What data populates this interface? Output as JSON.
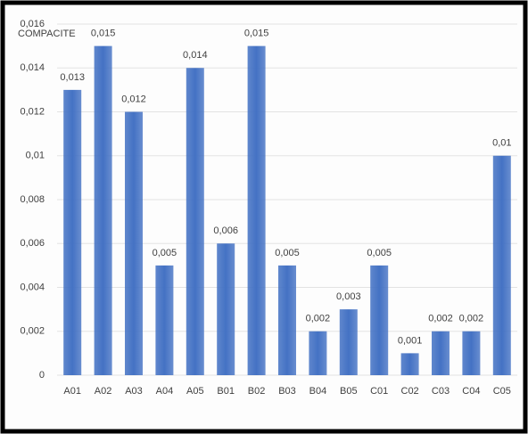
{
  "chart_data": {
    "type": "bar",
    "title": "COMPACITE",
    "categories": [
      "A01",
      "A02",
      "A03",
      "A04",
      "A05",
      "B01",
      "B02",
      "B03",
      "B04",
      "B05",
      "C01",
      "C02",
      "C03",
      "C04",
      "C05"
    ],
    "values": [
      0.013,
      0.015,
      0.012,
      0.005,
      0.014,
      0.006,
      0.015,
      0.005,
      0.002,
      0.003,
      0.005,
      0.001,
      0.002,
      0.002,
      0.01
    ],
    "value_labels": [
      "0,013",
      "0,015",
      "0,012",
      "0,005",
      "0,014",
      "0,006",
      "0,015",
      "0,005",
      "0,002",
      "0,003",
      "0,005",
      "0,001",
      "0,002",
      "0,002",
      "0,01"
    ],
    "color": "#4472c4",
    "ylim": [
      0,
      0.016
    ],
    "yticks": [
      0,
      {
        "value": 0.002,
        "label": "0,002"
      },
      {
        "value": 0.004,
        "label": "0,004"
      },
      {
        "value": 0.006,
        "label": "0,006"
      },
      {
        "value": 0.008,
        "label": "0,008"
      },
      {
        "value": 0.01,
        "label": "0,01"
      },
      {
        "value": 0.012,
        "label": "0,012"
      },
      {
        "value": 0.014,
        "label": "0,014"
      },
      {
        "value": 0.016,
        "label": "0,016"
      }
    ],
    "grid": true
  }
}
